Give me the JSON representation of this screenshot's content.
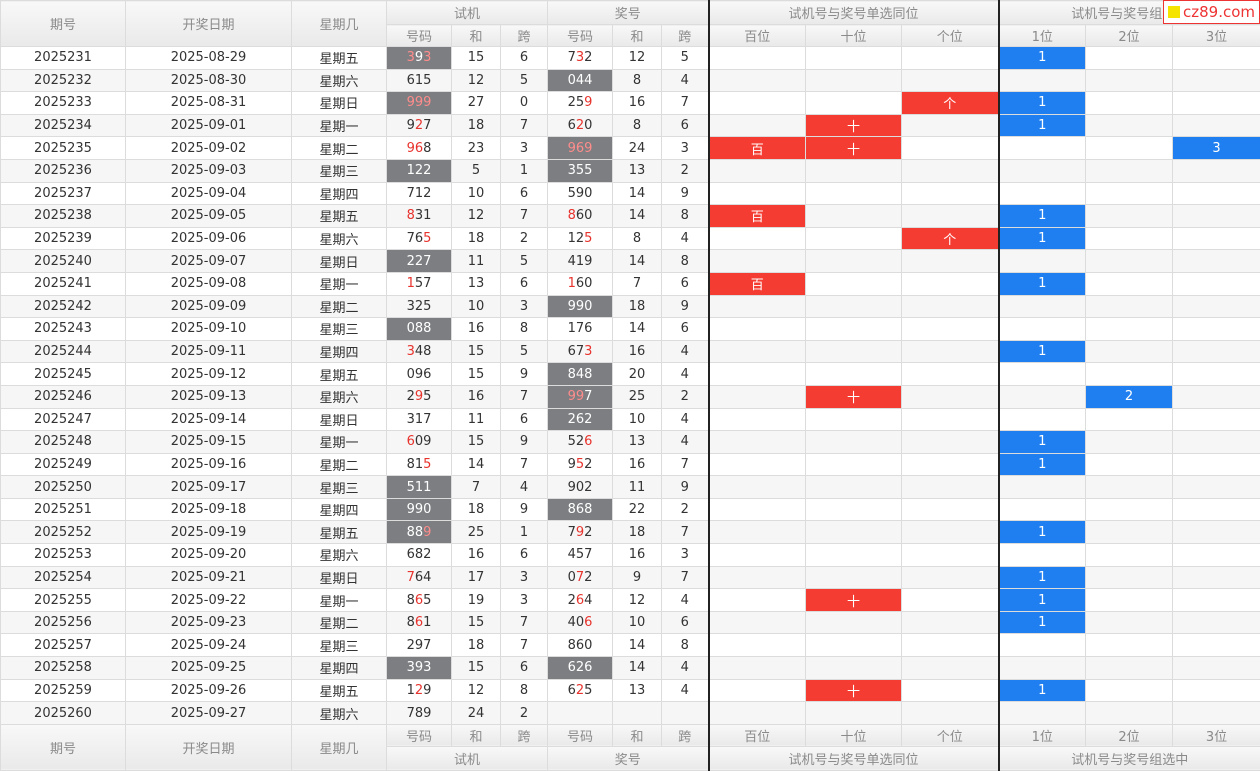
{
  "header": {
    "fixed": [
      "期号",
      "开奖日期",
      "星期几"
    ],
    "groups": [
      "试机",
      "奖号",
      "试机号与奖号单选同位",
      "试机号与奖号组选中"
    ],
    "subs": [
      "号码",
      "和",
      "跨",
      "号码",
      "和",
      "跨",
      "百位",
      "十位",
      "个位",
      "1位",
      "2位",
      "3位"
    ]
  },
  "rows": [
    [
      "2025231",
      "2025-08-29",
      "星期五",
      "393",
      15,
      6,
      "732",
      12,
      5,
      null,
      null,
      null,
      "1",
      null,
      null
    ],
    [
      "2025232",
      "2025-08-30",
      "星期六",
      "615",
      12,
      5,
      "044",
      8,
      4,
      null,
      null,
      null,
      null,
      null,
      null
    ],
    [
      "2025233",
      "2025-08-31",
      "星期日",
      "999",
      27,
      0,
      "259",
      16,
      7,
      null,
      null,
      "个",
      "1",
      null,
      null
    ],
    [
      "2025234",
      "2025-09-01",
      "星期一",
      "927",
      18,
      7,
      "620",
      8,
      6,
      null,
      "十",
      null,
      "1",
      null,
      null
    ],
    [
      "2025235",
      "2025-09-02",
      "星期二",
      "968",
      23,
      3,
      "969",
      24,
      3,
      "百",
      "十",
      null,
      null,
      null,
      "3"
    ],
    [
      "2025236",
      "2025-09-03",
      "星期三",
      "122",
      5,
      1,
      "355",
      13,
      2,
      null,
      null,
      null,
      null,
      null,
      null
    ],
    [
      "2025237",
      "2025-09-04",
      "星期四",
      "712",
      10,
      6,
      "590",
      14,
      9,
      null,
      null,
      null,
      null,
      null,
      null
    ],
    [
      "2025238",
      "2025-09-05",
      "星期五",
      "831",
      12,
      7,
      "860",
      14,
      8,
      "百",
      null,
      null,
      "1",
      null,
      null
    ],
    [
      "2025239",
      "2025-09-06",
      "星期六",
      "765",
      18,
      2,
      "125",
      8,
      4,
      null,
      null,
      "个",
      "1",
      null,
      null
    ],
    [
      "2025240",
      "2025-09-07",
      "星期日",
      "227",
      11,
      5,
      "419",
      14,
      8,
      null,
      null,
      null,
      null,
      null,
      null
    ],
    [
      "2025241",
      "2025-09-08",
      "星期一",
      "157",
      13,
      6,
      "160",
      7,
      6,
      "百",
      null,
      null,
      "1",
      null,
      null
    ],
    [
      "2025242",
      "2025-09-09",
      "星期二",
      "325",
      10,
      3,
      "990",
      18,
      9,
      null,
      null,
      null,
      null,
      null,
      null
    ],
    [
      "2025243",
      "2025-09-10",
      "星期三",
      "088",
      16,
      8,
      "176",
      14,
      6,
      null,
      null,
      null,
      null,
      null,
      null
    ],
    [
      "2025244",
      "2025-09-11",
      "星期四",
      "348",
      15,
      5,
      "673",
      16,
      4,
      null,
      null,
      null,
      "1",
      null,
      null
    ],
    [
      "2025245",
      "2025-09-12",
      "星期五",
      "096",
      15,
      9,
      "848",
      20,
      4,
      null,
      null,
      null,
      null,
      null,
      null
    ],
    [
      "2025246",
      "2025-09-13",
      "星期六",
      "295",
      16,
      7,
      "997",
      25,
      2,
      null,
      "十",
      null,
      null,
      "2",
      null
    ],
    [
      "2025247",
      "2025-09-14",
      "星期日",
      "317",
      11,
      6,
      "262",
      10,
      4,
      null,
      null,
      null,
      null,
      null,
      null
    ],
    [
      "2025248",
      "2025-09-15",
      "星期一",
      "609",
      15,
      9,
      "526",
      13,
      4,
      null,
      null,
      null,
      "1",
      null,
      null
    ],
    [
      "2025249",
      "2025-09-16",
      "星期二",
      "815",
      14,
      7,
      "952",
      16,
      7,
      null,
      null,
      null,
      "1",
      null,
      null
    ],
    [
      "2025250",
      "2025-09-17",
      "星期三",
      "511",
      7,
      4,
      "902",
      11,
      9,
      null,
      null,
      null,
      null,
      null,
      null
    ],
    [
      "2025251",
      "2025-09-18",
      "星期四",
      "990",
      18,
      9,
      "868",
      22,
      2,
      null,
      null,
      null,
      null,
      null,
      null
    ],
    [
      "2025252",
      "2025-09-19",
      "星期五",
      "889",
      25,
      1,
      "792",
      18,
      7,
      null,
      null,
      null,
      "1",
      null,
      null
    ],
    [
      "2025253",
      "2025-09-20",
      "星期六",
      "682",
      16,
      6,
      "457",
      16,
      3,
      null,
      null,
      null,
      null,
      null,
      null
    ],
    [
      "2025254",
      "2025-09-21",
      "星期日",
      "764",
      17,
      3,
      "072",
      9,
      7,
      null,
      null,
      null,
      "1",
      null,
      null
    ],
    [
      "2025255",
      "2025-09-22",
      "星期一",
      "865",
      19,
      3,
      "264",
      12,
      4,
      null,
      "十",
      null,
      "1",
      null,
      null
    ],
    [
      "2025256",
      "2025-09-23",
      "星期二",
      "861",
      15,
      7,
      "406",
      10,
      6,
      null,
      null,
      null,
      "1",
      null,
      null
    ],
    [
      "2025257",
      "2025-09-24",
      "星期三",
      "297",
      18,
      7,
      "860",
      14,
      8,
      null,
      null,
      null,
      null,
      null,
      null
    ],
    [
      "2025258",
      "2025-09-25",
      "星期四",
      "393",
      15,
      6,
      "626",
      14,
      4,
      null,
      null,
      null,
      null,
      null,
      null
    ],
    [
      "2025259",
      "2025-09-26",
      "星期五",
      "129",
      12,
      8,
      "625",
      13,
      4,
      null,
      "十",
      null,
      "1",
      null,
      null
    ],
    [
      "2025260",
      "2025-09-27",
      "星期六",
      "789",
      24,
      2,
      null,
      null,
      null,
      null,
      null,
      null,
      null,
      null,
      null
    ]
  ],
  "footer": {
    "fixed": [
      "期号",
      "开奖日期",
      "星期几"
    ],
    "subs": [
      "号码",
      "和",
      "跨",
      "号码",
      "和",
      "跨",
      "百位",
      "十位",
      "个位",
      "1位",
      "2位",
      "3位"
    ],
    "groups": [
      "试机",
      "奖号",
      "试机号与奖号单选同位",
      "试机号与奖号组选中"
    ]
  },
  "watermark": "cz89.com"
}
